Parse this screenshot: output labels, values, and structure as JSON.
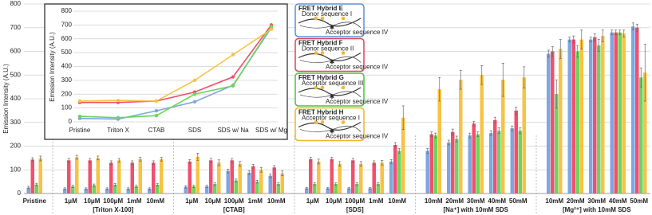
{
  "chart_data": [
    {
      "type": "bar",
      "y_label": "Emission Intensity (A.U.)",
      "ylim": [
        0,
        800
      ],
      "yticks": [
        0,
        100,
        200,
        300,
        400,
        500,
        600,
        700,
        800
      ],
      "grid": true,
      "groups": [
        {
          "label": null,
          "categories": [
            "Pristine"
          ]
        },
        {
          "label": "[Triton X-100]",
          "categories": [
            "1μM",
            "10μM",
            "100μM",
            "1mM",
            "10mM"
          ]
        },
        {
          "label": "[CTAB]",
          "categories": [
            "1μM",
            "10μM",
            "100μM",
            "1mM",
            "10mM"
          ]
        },
        {
          "label": "[SDS]",
          "categories": [
            "1μM",
            "10μM",
            "100μM",
            "1mM",
            "10mM"
          ]
        },
        {
          "label": "[Na⁺] with 10mM SDS",
          "categories": [
            "10mM",
            "20mM",
            "30mM",
            "40mM",
            "50mM"
          ]
        },
        {
          "label": "[Mg²⁺] with 10mM SDS",
          "categories": [
            "10mM",
            "20mM",
            "30mM",
            "40mM",
            "50mM"
          ]
        }
      ],
      "series": [
        {
          "color": "#7ea6e0",
          "values": [
            25,
            20,
            20,
            20,
            20,
            20,
            28,
            30,
            95,
            88,
            75,
            22,
            22,
            22,
            22,
            135,
            180,
            215,
            245,
            255,
            275,
            590,
            650,
            650,
            680,
            705
          ],
          "errors": [
            5,
            4,
            4,
            4,
            4,
            4,
            5,
            5,
            8,
            8,
            8,
            4,
            4,
            4,
            4,
            8,
            10,
            10,
            10,
            10,
            10,
            15,
            10,
            10,
            10,
            15
          ]
        },
        {
          "color": "#f0506e",
          "values": [
            143,
            140,
            140,
            130,
            130,
            130,
            135,
            140,
            140,
            115,
            110,
            145,
            145,
            140,
            130,
            205,
            250,
            260,
            295,
            310,
            350,
            600,
            650,
            660,
            680,
            700
          ],
          "errors": [
            8,
            8,
            8,
            8,
            8,
            8,
            8,
            8,
            8,
            8,
            8,
            8,
            8,
            8,
            8,
            10,
            10,
            12,
            10,
            12,
            15,
            20,
            15,
            15,
            10,
            15
          ]
        },
        {
          "color": "#6cd45a",
          "values": [
            38,
            30,
            35,
            37,
            30,
            37,
            30,
            40,
            55,
            50,
            40,
            40,
            40,
            40,
            40,
            180,
            245,
            230,
            250,
            265,
            265,
            420,
            600,
            625,
            680,
            490
          ],
          "errors": [
            5,
            5,
            5,
            5,
            5,
            5,
            5,
            5,
            6,
            6,
            5,
            5,
            5,
            5,
            5,
            10,
            10,
            12,
            10,
            12,
            12,
            60,
            25,
            25,
            10,
            40
          ]
        },
        {
          "color": "#f7c343",
          "values": [
            148,
            153,
            150,
            140,
            145,
            145,
            155,
            130,
            125,
            100,
            85,
            135,
            125,
            125,
            130,
            320,
            440,
            480,
            500,
            480,
            490,
            610,
            650,
            665,
            675,
            510
          ],
          "errors": [
            10,
            8,
            8,
            8,
            8,
            8,
            15,
            12,
            10,
            10,
            10,
            10,
            10,
            10,
            10,
            50,
            50,
            40,
            40,
            70,
            45,
            40,
            40,
            25,
            15,
            120
          ]
        }
      ]
    },
    {
      "type": "line",
      "y_label": "Emission Intensity (A.U.)",
      "ylim": [
        0,
        800
      ],
      "yticks": [
        0,
        100,
        200,
        300,
        400,
        500,
        600,
        700,
        800
      ],
      "grid": true,
      "categories": [
        "Pristine",
        "Triton X",
        "CTAB",
        "SDS",
        "SDS w/ Na",
        "SDS w/ Mg"
      ],
      "series": [
        {
          "color": "#7ea6e0",
          "values": [
            25,
            20,
            80,
            145,
            265,
            680
          ]
        },
        {
          "color": "#f0506e",
          "values": [
            140,
            140,
            150,
            215,
            325,
            700
          ]
        },
        {
          "color": "#6cd45a",
          "values": [
            40,
            30,
            45,
            200,
            260,
            690
          ]
        },
        {
          "color": "#f7c343",
          "values": [
            150,
            155,
            150,
            300,
            485,
            670
          ]
        }
      ]
    }
  ],
  "panels": [
    {
      "title": "FRET Hybrid E",
      "color": "#5b8fd6",
      "labels": [
        "Donor sequence I",
        "Acceptor sequence IV"
      ]
    },
    {
      "title": "FRET Hybrid F",
      "color": "#e0405e",
      "labels": [
        "Donor sequence II",
        "Acceptor sequence IV"
      ]
    },
    {
      "title": "FRET Hybrid G",
      "color": "#4fbf3c",
      "labels": [
        "Acceptor sequence III",
        "Acceptor sequence IV"
      ]
    },
    {
      "title": "FRET Hybrid H",
      "color": "#f0b429",
      "labels": [
        "Acceptor sequence I",
        "Acceptor sequence IV"
      ]
    }
  ]
}
